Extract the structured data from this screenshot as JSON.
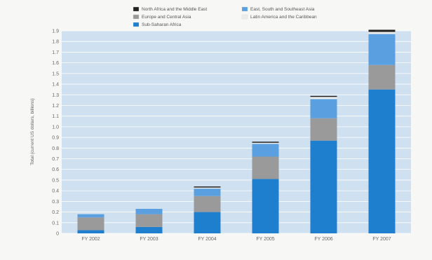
{
  "chart_data": {
    "type": "bar",
    "stacked": true,
    "title": "",
    "xlabel": "",
    "ylabel": "Total (current US dollars, billions)",
    "categories": [
      "FY 2002",
      "FY 2003",
      "FY 2004",
      "FY 2005",
      "FY 2006",
      "FY 2007"
    ],
    "ylim": [
      0,
      1.9
    ],
    "yticks": [
      0,
      0.1,
      0.2,
      0.3,
      0.4,
      0.5,
      0.6,
      0.7,
      0.8,
      0.9,
      1.0,
      1.1,
      1.2,
      1.3,
      1.4,
      1.5,
      1.6,
      1.7,
      1.8,
      1.9
    ],
    "ytick_labels": [
      "0",
      "0.1",
      "0.2",
      "0.3",
      "0.4",
      "0.5",
      "0.6",
      "0.7",
      "0.8",
      "0.9",
      "1.0",
      "1.1",
      "1.2",
      "1.3",
      "1.4",
      "1.5",
      "1.6",
      "1.7",
      "1.8",
      "1.9"
    ],
    "series": [
      {
        "name": "Sub-Saharan Africa",
        "color": "#1f7fcf",
        "values": [
          0.03,
          0.06,
          0.2,
          0.51,
          0.87,
          1.35
        ]
      },
      {
        "name": "Europe and Central Asia",
        "color": "#9a9a9a",
        "values": [
          0.12,
          0.12,
          0.15,
          0.21,
          0.21,
          0.23
        ]
      },
      {
        "name": "East, South and Southeast Asia",
        "color": "#5aa0e0",
        "values": [
          0.03,
          0.05,
          0.07,
          0.12,
          0.18,
          0.29
        ]
      },
      {
        "name": "Latin America and the Caribbean",
        "color": "#ededed",
        "values": [
          0.0,
          0.0,
          0.01,
          0.01,
          0.02,
          0.02
        ]
      },
      {
        "name": "North Africa and the Middle East",
        "color": "#222222",
        "values": [
          0.0,
          0.0,
          0.01,
          0.01,
          0.01,
          0.02
        ]
      }
    ],
    "grid": true,
    "legend_position": "top"
  },
  "legend_order": [
    "North Africa and the Middle East",
    "East, South and Southeast Asia",
    "Europe and Central Asia",
    "Latin America and the Caribbean",
    "Sub-Saharan Africa"
  ]
}
